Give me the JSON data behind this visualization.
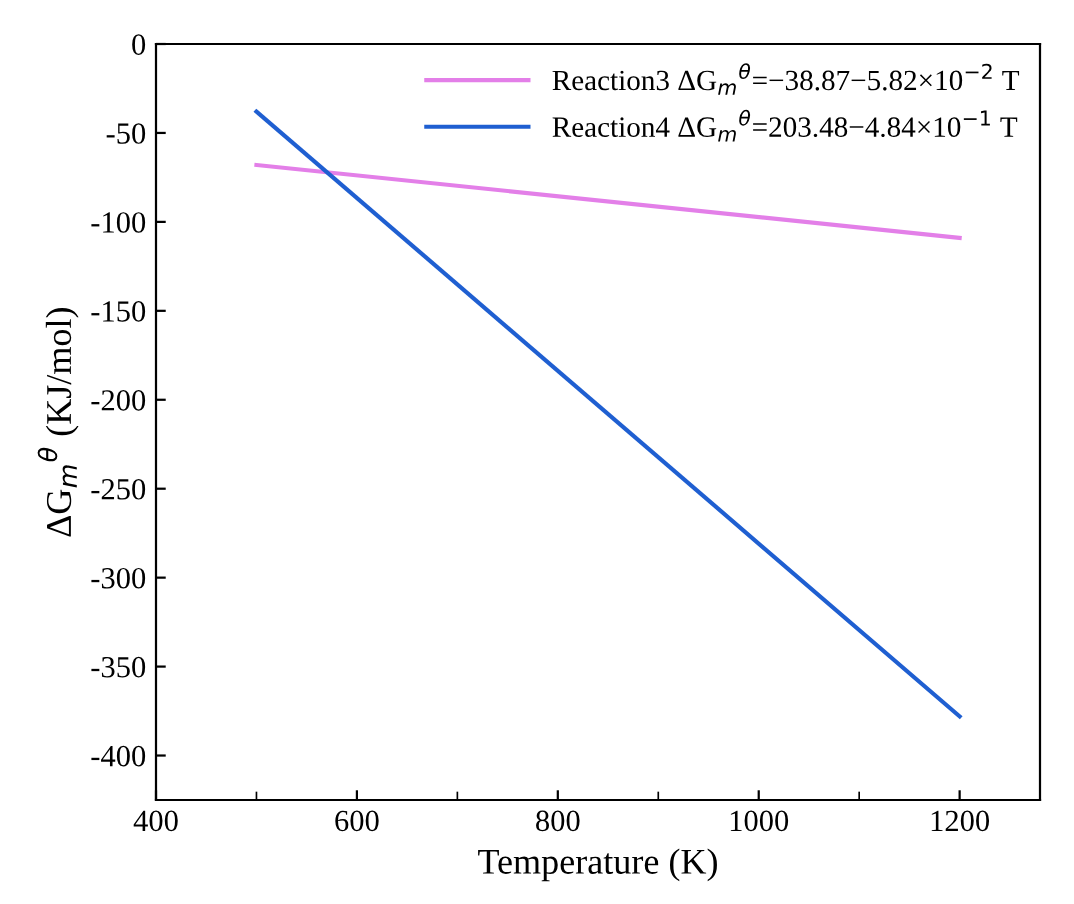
{
  "chart_data": {
    "type": "line",
    "xlabel": "Temperature (K)",
    "ylabel": "ΔG$_{m}$$^{θ}$ (KJ/mol)",
    "x": [
      500,
      1200
    ],
    "series": [
      {
        "name": "Reaction3 ΔG$_{m}$$^{θ}$=−38.87−5.82×10$^{−2}$ T",
        "color": "#e37fe8",
        "values": [
          -68,
          -109
        ]
      },
      {
        "name": "Reaction4 ΔG$_{m}$$^{θ}$=203.48−4.84×10$^{−1}$ T",
        "color": "#1f5fd1",
        "values": [
          -38,
          -378
        ]
      }
    ],
    "xlim": [
      400,
      1280
    ],
    "xticks": [
      400,
      600,
      800,
      1000,
      1200
    ],
    "ylim": [
      -425,
      0
    ],
    "yticks": [
      0,
      -50,
      -100,
      -150,
      -200,
      -250,
      -300,
      -350,
      -400
    ],
    "grid": false,
    "legend": "top right",
    "marker": "none",
    "line_style": "solid"
  }
}
